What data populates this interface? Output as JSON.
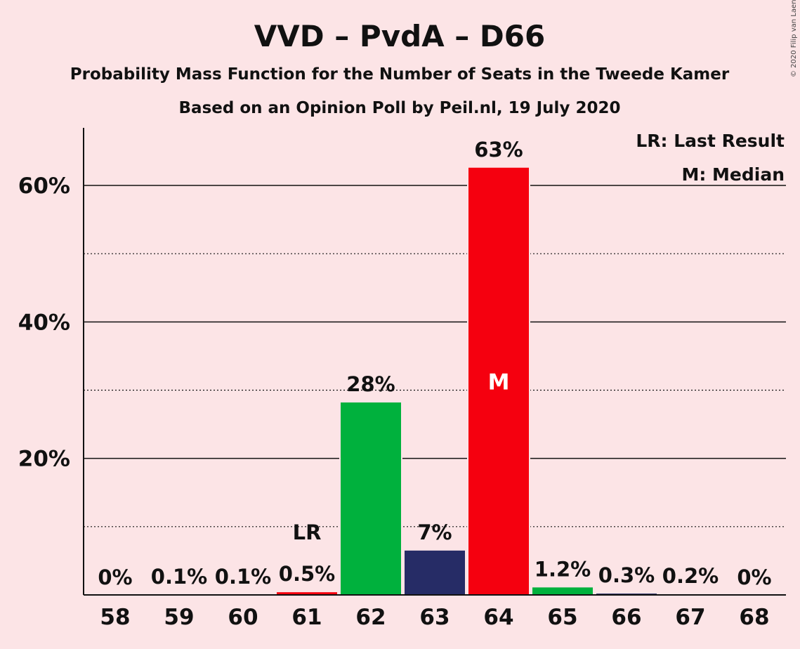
{
  "chart_data": {
    "type": "bar",
    "title": "VVD – PvdA – D66",
    "subtitle": "Probability Mass Function for the Number of Seats in the Tweede Kamer",
    "subtitle2": "Based on an Opinion Poll by Peil.nl, 19 July 2020",
    "copyright": "© 2020 Filip van Laenen",
    "legend": [
      "LR: Last Result",
      "M: Median"
    ],
    "legend_position": "top-right",
    "categories": [
      "58",
      "59",
      "60",
      "61",
      "62",
      "63",
      "64",
      "65",
      "66",
      "67",
      "68"
    ],
    "values": [
      0,
      0.1,
      0.1,
      0.5,
      28.3,
      6.6,
      62.7,
      1.2,
      0.3,
      0.2,
      0
    ],
    "labels": [
      "0%",
      "0.1%",
      "0.1%",
      "0.5%",
      "28%",
      "7%",
      "63%",
      "1.2%",
      "0.3%",
      "0.2%",
      "0%"
    ],
    "colors": [
      "#f5000f",
      "#00b13d",
      "#262c66",
      "#f5000f",
      "#00b13d",
      "#262c66",
      "#f5000f",
      "#00b13d",
      "#262c66",
      "#f5000f",
      "#00b13d"
    ],
    "last_result_index": 3,
    "last_result_marker": "LR",
    "median_index": 6,
    "median_marker": "M",
    "yticks": [
      20,
      40,
      60
    ],
    "ytick_labels": [
      "20%",
      "40%",
      "60%"
    ],
    "minor_gridlines": [
      10,
      30,
      50
    ],
    "ylim": [
      0,
      68.5
    ],
    "grid": true
  }
}
